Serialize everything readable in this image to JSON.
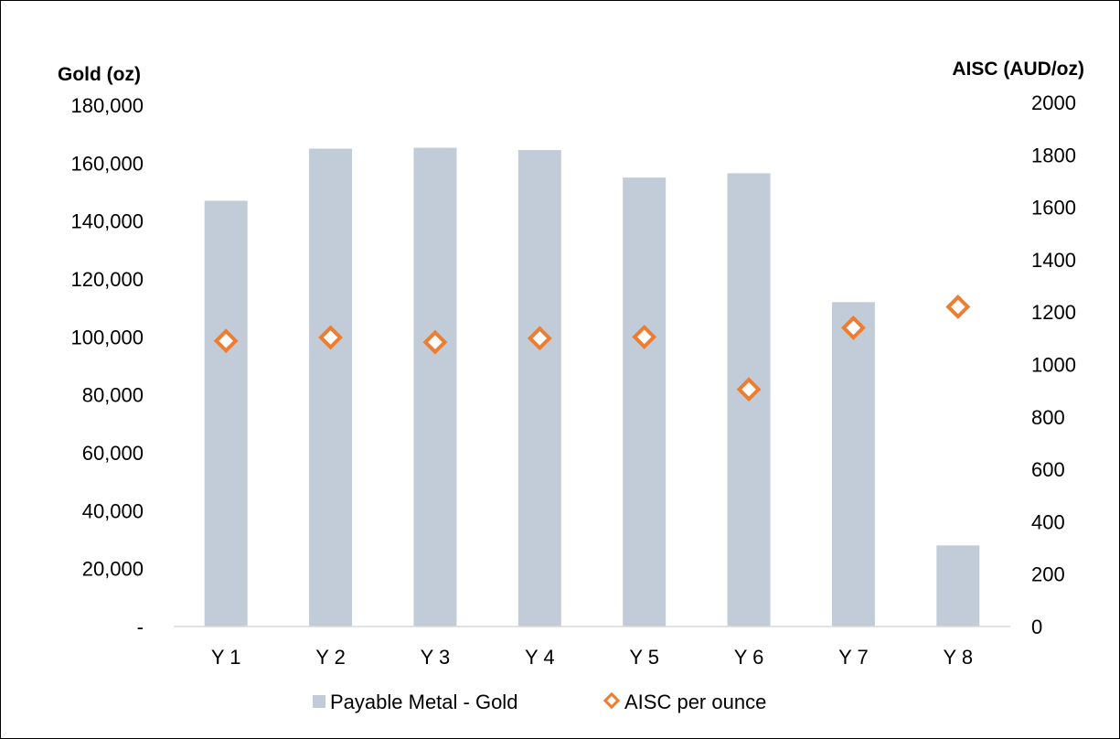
{
  "chart_data": {
    "type": "bar",
    "categories": [
      "Y 1",
      "Y 2",
      "Y 3",
      "Y 4",
      "Y 5",
      "Y 6",
      "Y 7",
      "Y 8"
    ],
    "series": [
      {
        "name": "Payable Metal - Gold",
        "kind": "bar",
        "axis": "left",
        "color": "#c2ccd8",
        "values": [
          147000,
          165000,
          165300,
          164500,
          155000,
          156500,
          112000,
          28000
        ]
      },
      {
        "name": "AISC per ounce",
        "kind": "marker",
        "marker": "diamond-outline",
        "axis": "right",
        "color": "#ed7d31",
        "values": [
          1090,
          1103,
          1085,
          1100,
          1105,
          905,
          1140,
          1220
        ]
      }
    ],
    "y_left": {
      "label": "Gold (oz)",
      "min": 0,
      "max": 180000,
      "tick_values": [
        0,
        20000,
        40000,
        60000,
        80000,
        100000,
        120000,
        140000,
        160000,
        180000
      ],
      "tick_labels": [
        "-",
        "20,000",
        "40,000",
        "60,000",
        "80,000",
        "100,000",
        "120,000",
        "140,000",
        "160,000",
        "180,000"
      ]
    },
    "y_right": {
      "label": "AISC (AUD/oz)",
      "min": 0,
      "max": 2000,
      "tick_values": [
        0,
        200,
        400,
        600,
        800,
        1000,
        1200,
        1400,
        1600,
        1800,
        2000
      ],
      "tick_labels": [
        "0",
        "200",
        "400",
        "600",
        "800",
        "1000",
        "1200",
        "1400",
        "1600",
        "1800",
        "2000"
      ]
    },
    "grid": false,
    "legend_position": "bottom"
  }
}
